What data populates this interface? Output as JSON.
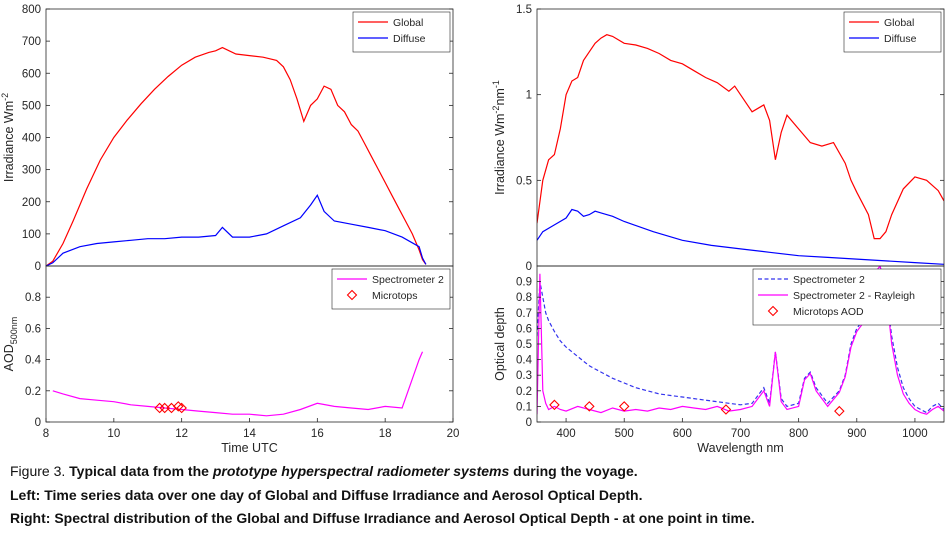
{
  "caption": {
    "fig_label": "Figure 3. ",
    "line1_pre": "Typical data from the ",
    "line1_em": "prototype hyperspectral radiometer systems",
    "line1_post": " during the voyage.",
    "line2": "Left:  Time series data over one day of Global and Diffuse Irradiance and Aerosol Optical Depth.",
    "line3": "Right: Spectral distribution of the Global and Diffuse Irradiance and Aerosol Optical Depth - at one point in time."
  },
  "colors": {
    "global": "#ff0000",
    "diffuse": "#0000ff",
    "spectrometer": "#ff00ff",
    "spectrometer_raw": "#3333ee",
    "microtops": "#ff0000",
    "axis": "#262626"
  },
  "chart_data": [
    {
      "id": "left-top",
      "type": "line",
      "ylabel_main": "Irradiance Wm",
      "ylabel_sup": "-2",
      "xlim": [
        8,
        20
      ],
      "ylim": [
        0,
        800
      ],
      "yticks": [
        "0",
        "100",
        "200",
        "300",
        "400",
        "500",
        "600",
        "700",
        "800"
      ],
      "legend_position": "top-right",
      "series": [
        {
          "name": "Global",
          "color": "#ff0000",
          "x": [
            8.0,
            8.2,
            8.5,
            8.8,
            9.2,
            9.6,
            10.0,
            10.4,
            10.8,
            11.2,
            11.6,
            12.0,
            12.4,
            12.8,
            13.0,
            13.2,
            13.6,
            14.0,
            14.4,
            14.8,
            15.0,
            15.2,
            15.4,
            15.6,
            15.8,
            16.0,
            16.2,
            16.4,
            16.6,
            16.8,
            17.0,
            17.2,
            17.4,
            17.6,
            17.8,
            18.0,
            18.2,
            18.4,
            18.6,
            18.8,
            19.0,
            19.1,
            19.2
          ],
          "y": [
            0,
            15,
            70,
            140,
            240,
            330,
            400,
            455,
            505,
            550,
            590,
            625,
            650,
            665,
            670,
            680,
            660,
            655,
            650,
            640,
            620,
            580,
            520,
            450,
            500,
            520,
            560,
            550,
            500,
            480,
            440,
            420,
            380,
            340,
            300,
            260,
            220,
            180,
            140,
            100,
            50,
            20,
            5
          ]
        },
        {
          "name": "Diffuse",
          "color": "#0000ff",
          "x": [
            8.0,
            8.2,
            8.5,
            9.0,
            9.5,
            10.0,
            10.5,
            11.0,
            11.5,
            12.0,
            12.5,
            13.0,
            13.2,
            13.5,
            14.0,
            14.5,
            15.0,
            15.5,
            15.8,
            16.0,
            16.2,
            16.5,
            17.0,
            17.5,
            18.0,
            18.5,
            19.0,
            19.1,
            19.2
          ],
          "y": [
            0,
            10,
            40,
            60,
            70,
            75,
            80,
            85,
            85,
            90,
            90,
            95,
            120,
            90,
            90,
            100,
            125,
            150,
            190,
            220,
            170,
            140,
            130,
            120,
            110,
            90,
            60,
            25,
            5
          ]
        }
      ]
    },
    {
      "id": "left-bottom",
      "type": "line",
      "xlabel": "Time UTC",
      "ylabel_main": "AOD",
      "ylabel_sub": "500nm",
      "xlim": [
        8,
        20
      ],
      "ylim": [
        0,
        1
      ],
      "xticks": [
        "8",
        "10",
        "12",
        "14",
        "16",
        "18",
        "20"
      ],
      "yticks": [
        "0",
        "0.2",
        "0.4",
        "0.6",
        "0.8"
      ],
      "legend_position": "top-right",
      "series": [
        {
          "name": "Spectrometer 2",
          "color": "#ff00ff",
          "x": [
            8.2,
            8.5,
            9.0,
            9.5,
            10.0,
            10.5,
            11.0,
            11.5,
            12.0,
            12.5,
            13.0,
            13.5,
            14.0,
            14.5,
            15.0,
            15.5,
            16.0,
            16.5,
            17.0,
            17.5,
            18.0,
            18.5,
            19.0,
            19.1
          ],
          "y": [
            0.2,
            0.18,
            0.15,
            0.14,
            0.13,
            0.11,
            0.1,
            0.09,
            0.08,
            0.07,
            0.06,
            0.05,
            0.05,
            0.04,
            0.05,
            0.08,
            0.12,
            0.1,
            0.09,
            0.08,
            0.1,
            0.09,
            0.4,
            0.45
          ]
        },
        {
          "name": "Microtops",
          "type": "scatter",
          "marker": "diamond",
          "color": "#ff0000",
          "x": [
            11.35,
            11.5,
            11.7,
            11.9,
            12.0
          ],
          "y": [
            0.09,
            0.09,
            0.09,
            0.1,
            0.09
          ]
        }
      ]
    },
    {
      "id": "right-top",
      "type": "line",
      "ylabel_main": "Irradiance Wm",
      "ylabel_sup1": "-2",
      "ylabel_mid": "nm",
      "ylabel_sup2": "-1",
      "xlim": [
        350,
        1050
      ],
      "ylim": [
        0,
        1.5
      ],
      "yticks": [
        "0",
        "0.5",
        "1",
        "1.5"
      ],
      "legend_position": "top-right",
      "series": [
        {
          "name": "Global",
          "color": "#ff0000",
          "x": [
            350,
            360,
            370,
            380,
            390,
            400,
            410,
            420,
            430,
            440,
            450,
            460,
            470,
            480,
            500,
            520,
            540,
            560,
            580,
            600,
            620,
            640,
            660,
            680,
            690,
            700,
            720,
            740,
            750,
            760,
            770,
            780,
            800,
            820,
            840,
            860,
            880,
            890,
            900,
            920,
            930,
            940,
            950,
            960,
            980,
            1000,
            1020,
            1040,
            1050
          ],
          "y": [
            0.25,
            0.5,
            0.62,
            0.65,
            0.8,
            1.0,
            1.08,
            1.1,
            1.2,
            1.25,
            1.3,
            1.33,
            1.35,
            1.34,
            1.3,
            1.29,
            1.27,
            1.24,
            1.2,
            1.18,
            1.14,
            1.1,
            1.07,
            1.02,
            1.05,
            1.0,
            0.9,
            0.94,
            0.85,
            0.62,
            0.78,
            0.88,
            0.8,
            0.72,
            0.7,
            0.72,
            0.6,
            0.5,
            0.43,
            0.3,
            0.16,
            0.16,
            0.2,
            0.3,
            0.45,
            0.52,
            0.5,
            0.44,
            0.38
          ]
        },
        {
          "name": "Diffuse",
          "color": "#0000ff",
          "x": [
            350,
            360,
            380,
            400,
            410,
            420,
            430,
            440,
            450,
            460,
            480,
            500,
            550,
            600,
            650,
            700,
            750,
            800,
            850,
            900,
            950,
            1000,
            1050
          ],
          "y": [
            0.15,
            0.2,
            0.24,
            0.28,
            0.33,
            0.32,
            0.29,
            0.3,
            0.32,
            0.31,
            0.29,
            0.26,
            0.2,
            0.15,
            0.12,
            0.1,
            0.08,
            0.06,
            0.05,
            0.04,
            0.03,
            0.02,
            0.01
          ]
        }
      ]
    },
    {
      "id": "right-bottom",
      "type": "line",
      "xlabel": "Wavelength nm",
      "ylabel_main": "Optical depth",
      "xlim": [
        350,
        1050
      ],
      "ylim": [
        0,
        1
      ],
      "xticks": [
        "400",
        "500",
        "600",
        "700",
        "800",
        "900",
        "1000"
      ],
      "yticks": [
        "0",
        "0.1",
        "0.2",
        "0.3",
        "0.4",
        "0.5",
        "0.6",
        "0.7",
        "0.8",
        "0.9"
      ],
      "legend_position": "top-right",
      "series": [
        {
          "name": "Spectrometer 2",
          "color": "#3333ee",
          "dashed": true,
          "x": [
            350,
            355,
            360,
            365,
            370,
            380,
            390,
            400,
            410,
            420,
            430,
            440,
            450,
            460,
            470,
            480,
            500,
            520,
            540,
            560,
            580,
            600,
            620,
            640,
            660,
            680,
            700,
            720,
            740,
            750,
            760,
            770,
            780,
            800,
            810,
            820,
            830,
            850,
            870,
            880,
            890,
            900,
            910,
            920,
            930,
            940,
            950,
            960,
            970,
            980,
            990,
            1000,
            1010,
            1020,
            1030,
            1040,
            1050
          ],
          "y": [
            0.55,
            0.9,
            0.8,
            0.7,
            0.65,
            0.58,
            0.52,
            0.48,
            0.45,
            0.42,
            0.39,
            0.36,
            0.34,
            0.32,
            0.3,
            0.28,
            0.25,
            0.22,
            0.2,
            0.18,
            0.17,
            0.16,
            0.15,
            0.14,
            0.13,
            0.12,
            0.11,
            0.12,
            0.22,
            0.12,
            0.45,
            0.15,
            0.1,
            0.12,
            0.28,
            0.32,
            0.22,
            0.12,
            0.2,
            0.3,
            0.5,
            0.6,
            0.65,
            0.75,
            0.95,
            1.0,
            0.85,
            0.55,
            0.35,
            0.22,
            0.15,
            0.1,
            0.08,
            0.06,
            0.1,
            0.12,
            0.08
          ]
        },
        {
          "name": "Spectrometer 2 - Rayleigh",
          "color": "#ff00ff",
          "x": [
            350,
            355,
            360,
            365,
            370,
            380,
            390,
            400,
            420,
            440,
            460,
            480,
            500,
            520,
            540,
            560,
            580,
            600,
            620,
            640,
            660,
            680,
            700,
            720,
            740,
            750,
            760,
            770,
            780,
            800,
            810,
            820,
            830,
            850,
            870,
            880,
            890,
            900,
            910,
            920,
            930,
            940,
            950,
            960,
            970,
            980,
            990,
            1000,
            1010,
            1020,
            1030,
            1040,
            1050
          ],
          "y": [
            0.05,
            0.95,
            0.2,
            0.12,
            0.08,
            0.1,
            0.08,
            0.07,
            0.1,
            0.08,
            0.06,
            0.09,
            0.07,
            0.08,
            0.07,
            0.09,
            0.08,
            0.1,
            0.09,
            0.08,
            0.1,
            0.07,
            0.08,
            0.1,
            0.2,
            0.1,
            0.45,
            0.13,
            0.08,
            0.1,
            0.27,
            0.31,
            0.2,
            0.1,
            0.19,
            0.29,
            0.48,
            0.58,
            0.63,
            0.72,
            0.95,
            1.0,
            0.85,
            0.5,
            0.3,
            0.18,
            0.12,
            0.08,
            0.06,
            0.05,
            0.08,
            0.1,
            0.07
          ]
        },
        {
          "name": "Microtops AOD",
          "type": "scatter",
          "marker": "diamond",
          "color": "#ff0000",
          "x": [
            380,
            440,
            500,
            675,
            870
          ],
          "y": [
            0.11,
            0.1,
            0.1,
            0.08,
            0.07
          ]
        }
      ]
    }
  ]
}
